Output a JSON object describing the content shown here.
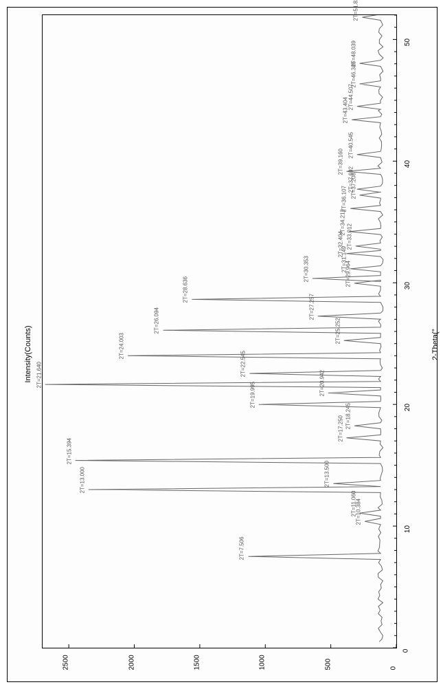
{
  "chart": {
    "type": "xrd-line",
    "xlabel": "Intensity(Counts)",
    "ylabel": "2-Theta(°",
    "background_color": "#ffffff",
    "line_color": "#666666",
    "axis_color": "#000000",
    "tick_fontsize": 10,
    "label_fontsize": 11,
    "peak_label_fontsize": 8,
    "xlim": [
      0,
      2700
    ],
    "ylim": [
      0,
      52
    ],
    "x_ticks": [
      0,
      500,
      1000,
      1500,
      2000,
      2500
    ],
    "y_ticks": [
      0,
      10,
      20,
      30,
      40,
      50
    ],
    "peaks": [
      {
        "two_theta": 7.506,
        "intensity": 1130,
        "label": "2T=7.506"
      },
      {
        "two_theta": 10.384,
        "intensity": 240,
        "label": "2T=10.384"
      },
      {
        "two_theta": 11.06,
        "intensity": 280,
        "label": "2T=11.060"
      },
      {
        "two_theta": 13.0,
        "intensity": 2350,
        "label": "2T=13.000"
      },
      {
        "two_theta": 13.5,
        "intensity": 480,
        "label": "2T=13.500"
      },
      {
        "two_theta": 15.394,
        "intensity": 2450,
        "label": "2T=15.394"
      },
      {
        "two_theta": 17.25,
        "intensity": 380,
        "label": "2T=17.250"
      },
      {
        "two_theta": 18.245,
        "intensity": 320,
        "label": "2T=18.245"
      },
      {
        "two_theta": 19.995,
        "intensity": 1050,
        "label": "2T=19.995"
      },
      {
        "two_theta": 20.942,
        "intensity": 520,
        "label": "2T=20.942"
      },
      {
        "two_theta": 21.64,
        "intensity": 2680,
        "label": "2T=21.640"
      },
      {
        "two_theta": 22.545,
        "intensity": 1120,
        "label": "2T=22.545"
      },
      {
        "two_theta": 24.003,
        "intensity": 2050,
        "label": "2T=24.003"
      },
      {
        "two_theta": 25.252,
        "intensity": 400,
        "label": "2T=25.252"
      },
      {
        "two_theta": 26.094,
        "intensity": 1780,
        "label": "2T=26.094"
      },
      {
        "two_theta": 27.257,
        "intensity": 600,
        "label": "2T=27.257"
      },
      {
        "two_theta": 28.636,
        "intensity": 1560,
        "label": "2T=28.636"
      },
      {
        "two_theta": 29.964,
        "intensity": 320,
        "label": "2T=29.964"
      },
      {
        "two_theta": 30.353,
        "intensity": 640,
        "label": "2T=30.353"
      },
      {
        "two_theta": 31.149,
        "intensity": 350,
        "label": "2T=31.149"
      },
      {
        "two_theta": 32.404,
        "intensity": 380,
        "label": "2T=32.404"
      },
      {
        "two_theta": 33.012,
        "intensity": 310,
        "label": "2T=33.012"
      },
      {
        "two_theta": 34.212,
        "intensity": 360,
        "label": "2T=34.212"
      },
      {
        "two_theta": 36.107,
        "intensity": 350,
        "label": "2T=36.107"
      },
      {
        "two_theta": 37.208,
        "intensity": 280,
        "label": "2T=37.208"
      },
      {
        "two_theta": 37.692,
        "intensity": 300,
        "label": "2T=37.692"
      },
      {
        "two_theta": 39.16,
        "intensity": 380,
        "label": "2T=39.160"
      },
      {
        "two_theta": 40.545,
        "intensity": 300,
        "label": "2T=40.545"
      },
      {
        "two_theta": 43.404,
        "intensity": 340,
        "label": "2T=43.404"
      },
      {
        "two_theta": 44.507,
        "intensity": 300,
        "label": "2T=44.507"
      },
      {
        "two_theta": 46.346,
        "intensity": 280,
        "label": "2T=46.346"
      },
      {
        "two_theta": 48.039,
        "intensity": 280,
        "label": "2T=48.039"
      },
      {
        "two_theta": 51.824,
        "intensity": 260,
        "label": "2T=51.824"
      }
    ],
    "baseline_intensity": 100
  }
}
